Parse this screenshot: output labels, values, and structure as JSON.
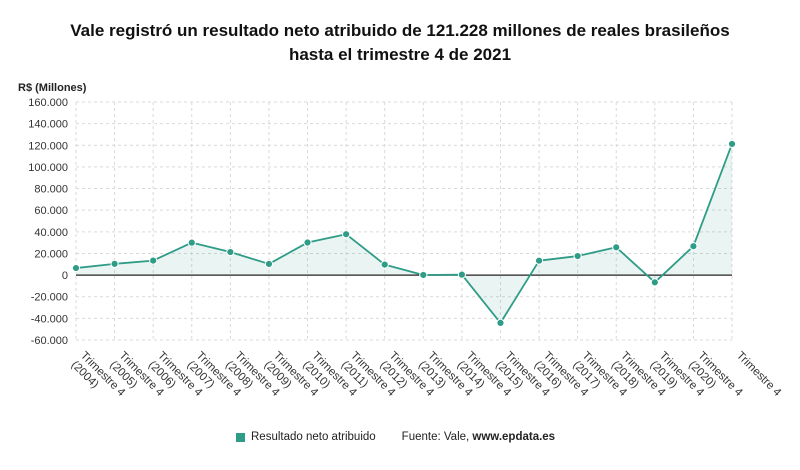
{
  "chart_data": {
    "type": "area",
    "title_line1": "Vale registró un resultado neto atribuido de 121.228 millones de reales brasileños",
    "title_line2": "hasta el trimestre 4 de 2021",
    "ylabel": "R$ (Millones)",
    "ylim": [
      -60000,
      160000
    ],
    "yticks": [
      160000,
      140000,
      120000,
      100000,
      80000,
      60000,
      40000,
      20000,
      0,
      -20000,
      -40000,
      -60000
    ],
    "ytick_labels": [
      "160.000",
      "140.000",
      "120.000",
      "100.000",
      "80.000",
      "60.000",
      "40.000",
      "20.000",
      "0",
      "-20.000",
      "-40.000",
      "-60.000"
    ],
    "categories": [
      "Trimestre 4 (2004)",
      "Trimestre 4 (2005)",
      "Trimestre 4 (2006)",
      "Trimestre 4 (2007)",
      "Trimestre 4 (2008)",
      "Trimestre 4 (2009)",
      "Trimestre 4 (2010)",
      "Trimestre 4 (2011)",
      "Trimestre 4 (2012)",
      "Trimestre 4 (2013)",
      "Trimestre 4 (2014)",
      "Trimestre 4 (2015)",
      "Trimestre 4 (2016)",
      "Trimestre 4 (2017)",
      "Trimestre 4 (2018)",
      "Trimestre 4 (2019)",
      "Trimestre 4 (2020)",
      "Trimestre 4"
    ],
    "category_line1": [
      "Trimestre 4",
      "Trimestre 4",
      "Trimestre 4",
      "Trimestre 4",
      "Trimestre 4",
      "Trimestre 4",
      "Trimestre 4",
      "Trimestre 4",
      "Trimestre 4",
      "Trimestre 4",
      "Trimestre 4",
      "Trimestre 4",
      "Trimestre 4",
      "Trimestre 4",
      "Trimestre 4",
      "Trimestre 4",
      "Trimestre 4",
      "Trimestre 4"
    ],
    "category_line2": [
      "(2004)",
      "(2005)",
      "(2006)",
      "(2007)",
      "(2008)",
      "(2009)",
      "(2010)",
      "(2011)",
      "(2012)",
      "(2013)",
      "(2014)",
      "(2015)",
      "(2016)",
      "(2017)",
      "(2018)",
      "(2019)",
      "(2020)",
      ""
    ],
    "series": [
      {
        "name": "Resultado neto atribuido",
        "color": "#2e9c86",
        "values": [
          6500,
          10400,
          13400,
          30000,
          21300,
          10300,
          30100,
          37800,
          9700,
          100,
          400,
          -44200,
          13300,
          17600,
          25700,
          -6700,
          26700,
          121228
        ]
      }
    ],
    "grid": true,
    "legend_position": "bottom"
  },
  "footer": {
    "source_prefix": "Fuente: Vale, ",
    "source_site": "www.epdata.es"
  }
}
